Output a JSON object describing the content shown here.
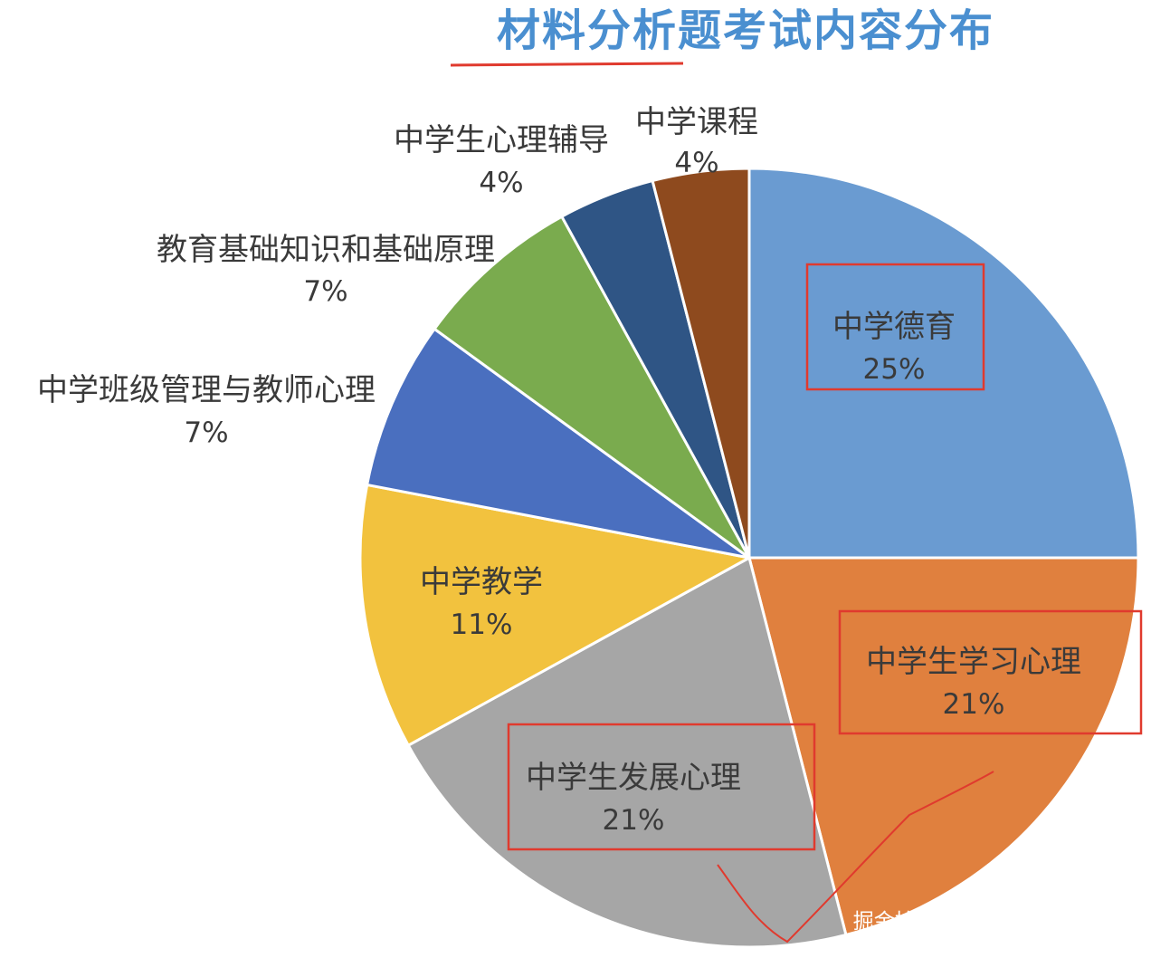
{
  "watermark": "掘金技术社区 @ 阴谋与酒瓶",
  "chart_data": {
    "type": "pie",
    "title": "材料分析题考试内容分布",
    "slices": [
      {
        "label": "中学德育",
        "value": 25,
        "pct": "25%",
        "color": "#6a9bd1",
        "text_color": "#3a3a3a",
        "boxed": true
      },
      {
        "label": "中学生学习心理",
        "value": 21,
        "pct": "21%",
        "color": "#e0803e",
        "text_color": "#3a3a3a",
        "boxed": true
      },
      {
        "label": "中学生发展心理",
        "value": 21,
        "pct": "21%",
        "color": "#a6a6a6",
        "text_color": "#3a3a3a",
        "boxed": true
      },
      {
        "label": "中学教学",
        "value": 11,
        "pct": "11%",
        "color": "#f2c23e",
        "text_color": "#3a3a3a",
        "boxed": false
      },
      {
        "label": "中学班级管理与教师心理",
        "value": 7,
        "pct": "7%",
        "color": "#4a6fbf",
        "text_color": "#3a3a3a",
        "boxed": false
      },
      {
        "label": "教育基础知识和基础原理",
        "value": 7,
        "pct": "7%",
        "color": "#7aab4e",
        "text_color": "#3a3a3a",
        "boxed": false
      },
      {
        "label": "中学生心理辅导",
        "value": 4,
        "pct": "4%",
        "color": "#2f5585",
        "text_color": "#3a3a3a",
        "boxed": false
      },
      {
        "label": "中学课程",
        "value": 4,
        "pct": "4%",
        "color": "#8e4a1e",
        "text_color": "#3a3a3a",
        "boxed": false
      }
    ]
  }
}
